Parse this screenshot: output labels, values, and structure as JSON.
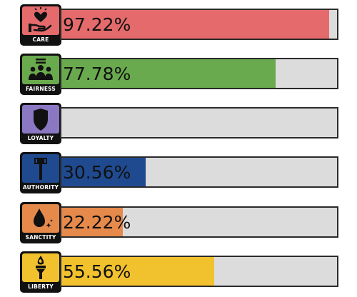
{
  "foundations": [
    {
      "id": "care",
      "label": "CARE",
      "value_text": "97.22%",
      "fraction": 0.9722,
      "color": "#e46a6b",
      "icon": "heart-hand-icon"
    },
    {
      "id": "fairness",
      "label": "FAIRNESS",
      "value_text": "77.78%",
      "fraction": 0.7778,
      "color": "#6aaa4e",
      "icon": "people-group-icon"
    },
    {
      "id": "loyalty",
      "label": "LOYALTY",
      "value_text": "",
      "fraction": 0,
      "color": "#8b78c3",
      "icon": "shield-icon"
    },
    {
      "id": "authority",
      "label": "AUTHORITY",
      "value_text": "30.56%",
      "fraction": 0.3056,
      "color": "#1f4a8f",
      "icon": "gavel-icon"
    },
    {
      "id": "sanctity",
      "label": "SANCTITY",
      "value_text": "22.22%",
      "fraction": 0.2222,
      "color": "#e68a4c",
      "icon": "water-drop-icon"
    },
    {
      "id": "liberty",
      "label": "LIBERTY",
      "value_text": "55.56%",
      "fraction": 0.5556,
      "color": "#f2c22e",
      "icon": "torch-icon"
    }
  ]
}
